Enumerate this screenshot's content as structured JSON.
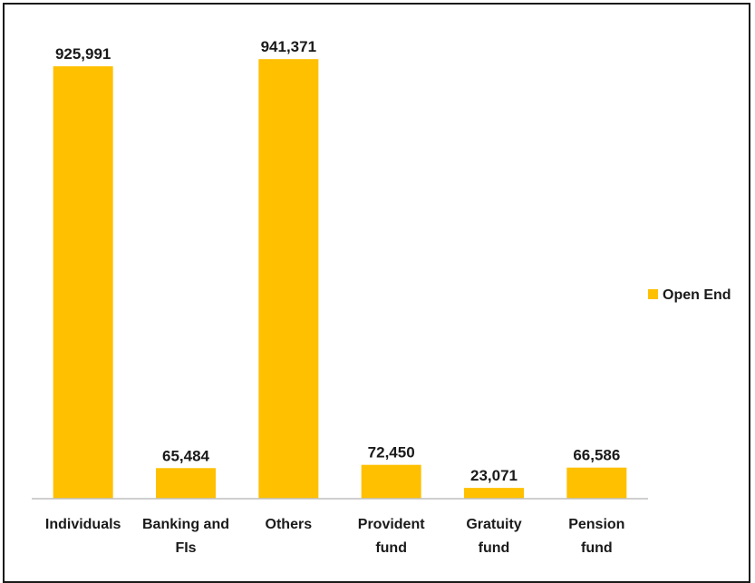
{
  "chart_data": {
    "type": "bar",
    "title": "",
    "xlabel": "",
    "ylabel": "",
    "categories": [
      [
        "Individuals"
      ],
      [
        "Banking and",
        "FIs"
      ],
      [
        "Others"
      ],
      [
        "Provident",
        "fund"
      ],
      [
        "Gratuity",
        "fund"
      ],
      [
        "Pension",
        "fund"
      ]
    ],
    "series": [
      {
        "name": "Open End",
        "color": "#FFC000",
        "values": [
          925991,
          65484,
          941371,
          72450,
          23071,
          66586
        ],
        "labels": [
          "925,991",
          "65,484",
          "941,371",
          "72,450",
          "23,071",
          "66,586"
        ]
      }
    ],
    "ylim": [
      0,
      1000000
    ],
    "grid": false,
    "data_labels": true,
    "legend": {
      "position": "right"
    },
    "axis_color": "#bfbfbf"
  }
}
